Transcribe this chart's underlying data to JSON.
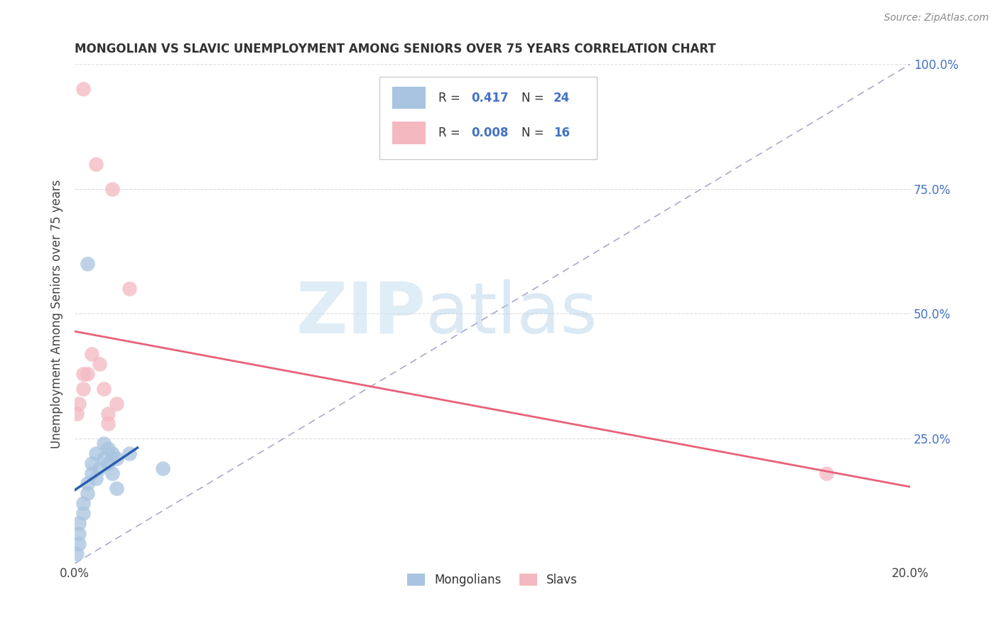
{
  "title": "MONGOLIAN VS SLAVIC UNEMPLOYMENT AMONG SENIORS OVER 75 YEARS CORRELATION CHART",
  "source": "Source: ZipAtlas.com",
  "ylabel": "Unemployment Among Seniors over 75 years",
  "watermark_zip": "ZIP",
  "watermark_atlas": "atlas",
  "legend_mongolians": "Mongolians",
  "legend_slavs": "Slavs",
  "mongolian_R": "0.417",
  "mongolian_N": "24",
  "slavic_R": "0.008",
  "slavic_N": "16",
  "mongolian_color": "#a8c4e0",
  "slavic_color": "#f4b8c1",
  "trend_mongolian_color": "#2b5fad",
  "trend_slavic_color": "#e8617a",
  "xlim": [
    0.0,
    0.2
  ],
  "ylim": [
    0.0,
    1.0
  ],
  "background_color": "#ffffff",
  "grid_color": "#dddddd",
  "mongolians_x": [
    0.0005,
    0.001,
    0.001,
    0.001,
    0.002,
    0.002,
    0.003,
    0.003,
    0.004,
    0.004,
    0.005,
    0.005,
    0.006,
    0.007,
    0.007,
    0.008,
    0.008,
    0.009,
    0.009,
    0.01,
    0.01,
    0.013,
    0.021,
    0.003
  ],
  "mongolians_y": [
    0.02,
    0.04,
    0.06,
    0.08,
    0.1,
    0.12,
    0.14,
    0.16,
    0.18,
    0.2,
    0.17,
    0.22,
    0.19,
    0.21,
    0.24,
    0.2,
    0.23,
    0.18,
    0.22,
    0.15,
    0.21,
    0.22,
    0.19,
    0.6
  ],
  "slavs_x": [
    0.0005,
    0.001,
    0.002,
    0.002,
    0.003,
    0.004,
    0.005,
    0.006,
    0.007,
    0.008,
    0.008,
    0.009,
    0.01,
    0.013,
    0.18,
    0.002
  ],
  "slavs_y": [
    0.3,
    0.32,
    0.35,
    0.95,
    0.38,
    0.42,
    0.8,
    0.4,
    0.35,
    0.3,
    0.28,
    0.75,
    0.32,
    0.55,
    0.18,
    0.38
  ]
}
